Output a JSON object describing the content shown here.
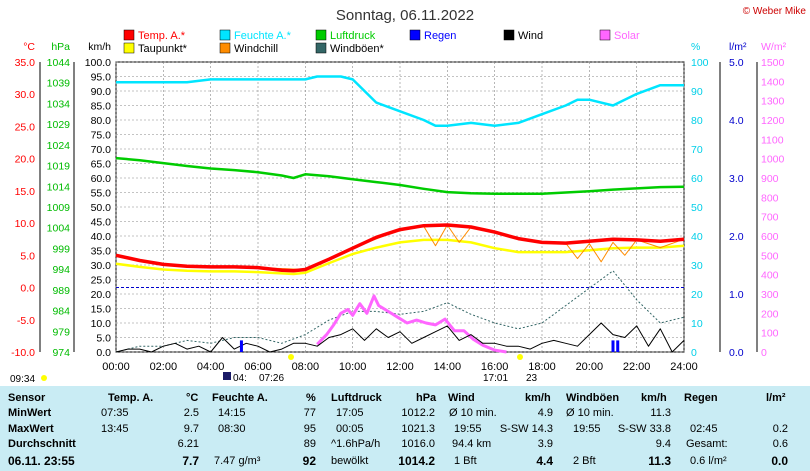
{
  "header": {
    "title": "Sonntag, 06.11.2022",
    "copyright": "© Weber Mike"
  },
  "legend": [
    {
      "label": "Temp. A.*",
      "color": "#ff0000"
    },
    {
      "label": "Feuchte A.*",
      "color": "#00e5ff"
    },
    {
      "label": "Luftdruck",
      "color": "#00cc00"
    },
    {
      "label": "Regen",
      "color": "#0000ff"
    },
    {
      "label": "Wind",
      "color": "#000000"
    },
    {
      "label": "Solar",
      "color": "#ff66ff"
    },
    {
      "label": "Taupunkt*",
      "color": "#ffff00"
    },
    {
      "label": "Windchill",
      "color": "#ff8c00"
    },
    {
      "label": "Windböen*",
      "color": "#336666"
    }
  ],
  "axis_units": {
    "temp": "°C",
    "pressure": "hPa",
    "wind": "km/h",
    "humidity": "%",
    "rain": "l/m²",
    "solar": "W/m²"
  },
  "chart_data": {
    "type": "line",
    "title": "Sonntag, 06.11.2022",
    "x_ticks": [
      "00:00",
      "02:00",
      "04:00",
      "06:00",
      "08:00",
      "10:00",
      "12:00",
      "14:00",
      "16:00",
      "18:00",
      "20:00",
      "22:00",
      "24:00"
    ],
    "axes": {
      "temp": {
        "label": "°C",
        "ticks": [
          "35.0",
          "30.0",
          "25.0",
          "20.0",
          "15.0",
          "10.0",
          "5.0",
          "0.0",
          "-5.0",
          "-10.0"
        ],
        "range": [
          -10,
          35
        ]
      },
      "pressure": {
        "label": "hPa",
        "ticks": [
          "1044",
          "1039",
          "1034",
          "1029",
          "1024",
          "1019",
          "1014",
          "1009",
          "1004",
          "999",
          "994",
          "989",
          "984",
          "979",
          "974"
        ],
        "range": [
          974,
          1044
        ]
      },
      "wind": {
        "label": "km/h",
        "ticks": [
          "100.0",
          "95.0",
          "90.0",
          "85.0",
          "80.0",
          "75.0",
          "70.0",
          "65.0",
          "60.0",
          "55.0",
          "50.0",
          "45.0",
          "40.0",
          "35.0",
          "30.0",
          "25.0",
          "20.0",
          "15.0",
          "10.0",
          "5.0",
          "0.0"
        ],
        "range": [
          0,
          100
        ]
      },
      "humidity": {
        "label": "%",
        "ticks": [
          "100",
          "90",
          "80",
          "70",
          "60",
          "50",
          "40",
          "30",
          "20",
          "10",
          "0"
        ],
        "range": [
          0,
          100
        ]
      },
      "rain": {
        "label": "l/m²",
        "ticks": [
          "5.0",
          "4.0",
          "3.0",
          "2.0",
          "1.0",
          "0.0"
        ],
        "range": [
          0,
          5
        ]
      },
      "solar": {
        "label": "W/m²",
        "ticks": [
          "1500",
          "1400",
          "1300",
          "1200",
          "1100",
          "1000",
          "900",
          "800",
          "700",
          "600",
          "500",
          "400",
          "300",
          "200",
          "100",
          "0"
        ],
        "range": [
          0,
          1500
        ]
      }
    },
    "series": [
      {
        "name": "Temp. A.",
        "axis": "temp",
        "color": "#ff0000",
        "x": [
          0,
          1,
          2,
          3,
          4,
          5,
          6,
          7,
          7.5,
          8,
          9,
          10,
          11,
          12,
          13,
          14,
          15,
          16,
          17,
          18,
          19,
          20,
          21,
          22,
          23,
          24
        ],
        "y": [
          5.0,
          4.2,
          3.6,
          3.3,
          3.2,
          3.2,
          3.1,
          2.7,
          2.6,
          2.8,
          4.4,
          6.1,
          7.8,
          9.0,
          9.6,
          9.7,
          9.4,
          8.6,
          7.6,
          7.0,
          6.9,
          7.2,
          7.5,
          7.4,
          7.2,
          7.5
        ]
      },
      {
        "name": "Taupunkt",
        "axis": "temp",
        "color": "#ffff00",
        "x": [
          0,
          1,
          2,
          3,
          4,
          5,
          6,
          7,
          7.5,
          8,
          9,
          10,
          11,
          12,
          13,
          14,
          15,
          16,
          17,
          18,
          19,
          20,
          21,
          22,
          23,
          24
        ],
        "y": [
          3.7,
          3.2,
          2.8,
          2.6,
          2.5,
          2.5,
          2.4,
          2.2,
          2.1,
          2.3,
          3.8,
          5.2,
          6.2,
          7.0,
          7.4,
          7.4,
          7.0,
          6.1,
          5.5,
          5.5,
          5.5,
          5.8,
          6.1,
          6.2,
          6.2,
          6.5
        ]
      },
      {
        "name": "Windchill",
        "axis": "temp",
        "color": "#ff8c00",
        "x": [
          0,
          2,
          4,
          6,
          8,
          10,
          12,
          13,
          13.5,
          14,
          14.5,
          15,
          16,
          17,
          18,
          19,
          19.5,
          20,
          20.5,
          21,
          21.5,
          22,
          23,
          24
        ],
        "y": [
          5.0,
          3.6,
          3.2,
          3.1,
          2.8,
          6.1,
          9.0,
          9.5,
          6.5,
          9.7,
          7.0,
          9.4,
          8.6,
          7.6,
          7.0,
          6.9,
          4.5,
          6.8,
          4.0,
          7.0,
          5.0,
          7.4,
          6.2,
          7.5
        ]
      },
      {
        "name": "Feuchte A.",
        "axis": "humidity",
        "color": "#00e5ff",
        "x": [
          0,
          1,
          2,
          3,
          4,
          5,
          6,
          7,
          8,
          8.5,
          9,
          9.5,
          10,
          11,
          12,
          13,
          13.5,
          14,
          15,
          16,
          17,
          18,
          19,
          19.5,
          20,
          21,
          22,
          23,
          24
        ],
        "y": [
          93,
          93,
          93,
          93,
          94,
          94,
          94,
          94,
          94,
          95,
          95,
          95,
          94,
          86,
          83,
          80,
          78,
          78,
          79,
          78,
          79,
          82,
          85,
          87,
          87,
          85,
          89,
          92,
          92
        ]
      },
      {
        "name": "Luftdruck",
        "axis": "pressure",
        "color": "#00cc00",
        "x": [
          0,
          1,
          2,
          3,
          4,
          5,
          6,
          7,
          7.5,
          8,
          9,
          10,
          11,
          12,
          13,
          14,
          15,
          16,
          17,
          18,
          19,
          20,
          21,
          22,
          23,
          24
        ],
        "y": [
          1020.8,
          1020.3,
          1019.6,
          1018.9,
          1018.3,
          1017.9,
          1017.4,
          1016.6,
          1016.0,
          1016.9,
          1016.4,
          1015.7,
          1015.0,
          1014.3,
          1013.4,
          1012.6,
          1012.3,
          1012.2,
          1012.2,
          1012.2,
          1012.5,
          1012.8,
          1013.2,
          1013.5,
          1013.8,
          1013.9
        ]
      },
      {
        "name": "Wind",
        "axis": "wind",
        "color": "#000000",
        "x": [
          0,
          0.5,
          1,
          1.5,
          2,
          2.5,
          3,
          3.5,
          4,
          4.5,
          5,
          5.5,
          6,
          6.5,
          7,
          7.5,
          8,
          8.5,
          9,
          9.5,
          10,
          10.5,
          11,
          11.5,
          12,
          12.5,
          13,
          13.5,
          14,
          14.5,
          15,
          15.5,
          16,
          16.5,
          17,
          17.5,
          18,
          18.5,
          19,
          19.5,
          20,
          20.5,
          21,
          21.5,
          22,
          22.5,
          23,
          23.5,
          24
        ],
        "y": [
          0,
          1,
          1,
          0,
          2,
          3,
          1,
          2,
          0,
          5,
          1,
          3,
          2,
          0,
          1,
          3,
          3,
          2,
          5,
          6,
          8,
          4,
          8,
          5,
          7,
          3,
          5,
          7,
          9,
          4,
          6,
          3,
          3,
          2,
          2,
          1,
          3,
          4,
          3,
          2,
          6,
          10,
          6,
          5,
          9,
          2,
          8,
          0,
          4
        ]
      },
      {
        "name": "Windböen",
        "axis": "wind",
        "color": "#336666",
        "x": [
          0,
          1,
          2,
          3,
          4,
          5,
          6,
          7,
          8,
          9,
          10,
          11,
          12,
          13,
          14,
          15,
          16,
          17,
          18,
          19,
          20,
          21,
          22,
          23,
          24
        ],
        "y": [
          0,
          2,
          2,
          4,
          3,
          5,
          5,
          3,
          6,
          11,
          14,
          14,
          13,
          14,
          17,
          13,
          10,
          8,
          10,
          16,
          22,
          28,
          18,
          10,
          12
        ]
      },
      {
        "name": "Solar",
        "axis": "solar",
        "color": "#ff66ff",
        "x": [
          8.5,
          8.9,
          9.2,
          9.5,
          9.8,
          10,
          10.3,
          10.6,
          10.9,
          11.1,
          11.5,
          11.9,
          12.3,
          12.7,
          13.1,
          13.5,
          13.9,
          14.3,
          14.7,
          15.1,
          15.5,
          16,
          16.5
        ],
        "y": [
          40,
          90,
          140,
          200,
          220,
          190,
          250,
          200,
          290,
          240,
          210,
          180,
          150,
          165,
          150,
          140,
          170,
          110,
          110,
          65,
          35,
          10,
          0
        ]
      }
    ],
    "rain_bars": [
      {
        "x": 5.3,
        "y": 0.2
      },
      {
        "x": 21.0,
        "y": 0.2
      },
      {
        "x": 21.2,
        "y": 0.2
      }
    ],
    "reference_line": {
      "axis": "temp",
      "y": 0.0,
      "color": "#0000cc"
    }
  },
  "sun": {
    "sunrise_label": "07:26",
    "sunset_label": "17:01",
    "moon_label": "04:",
    "moon_day": "23",
    "time_left": "09:34"
  },
  "table": {
    "headers": [
      "Sensor",
      "Temp. A.",
      "°C",
      "Feuchte A.",
      "%",
      "Luftdruck",
      "hPa",
      "Wind",
      "km/h",
      "Windböen",
      "km/h",
      "Regen",
      "l/m²"
    ],
    "rows": [
      {
        "label": "MinWert",
        "c1": "07:35",
        "c2": "2.5",
        "c3": "14:15",
        "c4": "77",
        "c5": "17:05",
        "c6": "1012.2",
        "c7": "Ø 10 min.",
        "c8": "4.9",
        "c9": "Ø 10 min.",
        "c10": "11.3",
        "c11": "",
        "c12": ""
      },
      {
        "label": "MaxWert",
        "c1": "13:45",
        "c2": "9.7",
        "c3": "08:30",
        "c4": "95",
        "c5": "00:05",
        "c6": "1021.3",
        "c7": "19:55",
        "c7b": "S-SW 14.3",
        "c9": "19:55",
        "c9b": "S-SW 33.8",
        "c11": "02:45",
        "c12": "0.2"
      },
      {
        "label": "Durchschnitt",
        "c1": "",
        "c2": "6.21",
        "c3": "",
        "c4": "89",
        "c5": "^1.6hPa/h",
        "c6": "1016.0",
        "c7": "94.4 km",
        "c8": "3.9",
        "c9": "",
        "c10": "9.4",
        "c11": "Gesamt:",
        "c12": "0.6"
      },
      {
        "label": "06.11. 23:55",
        "c1": "",
        "c2": "7.7",
        "c3": "7.47 g/m³",
        "c4": "92",
        "c5": "bewölkt",
        "c6": "1014.2",
        "c7": "1 Bft",
        "c8": "4.4",
        "c9": "2 Bft",
        "c10": "11.3",
        "c11": "0.6 l/m²",
        "c12": "0.0"
      }
    ]
  }
}
